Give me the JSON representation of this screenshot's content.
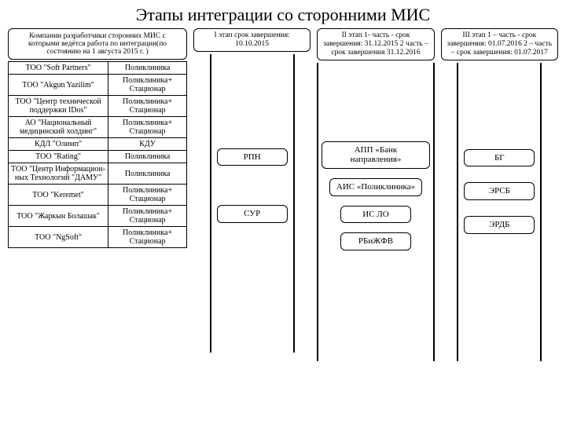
{
  "title": "Этапы интеграции со сторонними МИС",
  "companies_header": "Компании разработчики сторонних МИС с которыми ведётся работа по интеграции(по состоянию на 1 августа 2015 г. )",
  "companies": [
    {
      "name": "ТОО \"Soft Partners\"",
      "type": "Поликлиника"
    },
    {
      "name": "ТОО \"Akgun Yazilim\"",
      "type": "Поликлиника+ Стационар"
    },
    {
      "name": "ТОО \"Центр технической поддержки IDos\"",
      "type": "Поликлиника+ Стационар"
    },
    {
      "name": "АО \"Национальный медицинский холдинг\"",
      "type": "Поликлиника+ Стационар"
    },
    {
      "name": "КДЛ \"Олимп\"",
      "type": "КДУ"
    },
    {
      "name": "ТОО \"Rating\"",
      "type": "Поликлиника"
    },
    {
      "name": "ТОО \"Центр Информацион- ных Технологий \"ДАМУ\"",
      "type": "Поликлиника"
    },
    {
      "name": "ТОО \"Keremet\"",
      "type": "Поликлиника+ Стационар"
    },
    {
      "name": "ТОО \"Жаркын Болашак\"",
      "type": "Поликлиника+ Стационар"
    },
    {
      "name": "ТОО \"NgSoft\"",
      "type": "Поликлиника+ Стационар"
    }
  ],
  "stages": {
    "s1": {
      "header": "I этап\nсрок завершения:\n10.10.2015",
      "nodes": [
        "РПН",
        "СУР"
      ]
    },
    "s2": {
      "header": "II этап\n1- часть - срок\nзавершения:\n31.12.2015\n2 часть – срок\nзавершения\n31.12.2016",
      "nodes": [
        "АПП «Банк направления»",
        "АИС «Поликлиника»",
        "ИС ЛО",
        "РБиЖФВ"
      ]
    },
    "s3": {
      "header": "III этап\n1 – часть - срок\nзавершения:\n01.07.2016\n2 – часть – срок\nзавершения:\n01.07.2017",
      "nodes": [
        "БГ",
        "ЭРСБ",
        "ЭРДБ"
      ]
    }
  },
  "colors": {
    "border": "#000000",
    "bg": "#ffffff",
    "text": "#000000"
  }
}
